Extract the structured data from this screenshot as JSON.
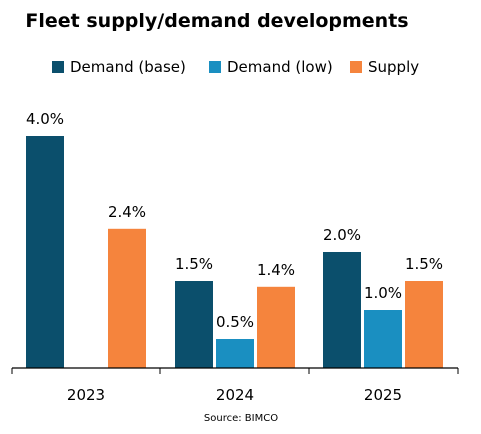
{
  "chart_data": {
    "type": "bar",
    "title": "Fleet supply/demand developments",
    "categories": [
      "2023",
      "2024",
      "2025"
    ],
    "series": [
      {
        "name": "Demand (base)",
        "values": [
          4.0,
          1.5,
          2.0
        ],
        "labels": [
          "4.0%",
          "1.5%",
          "2.0%"
        ],
        "color": "#0b4f6c"
      },
      {
        "name": "Demand (low)",
        "values": [
          null,
          0.5,
          1.0
        ],
        "labels": [
          "",
          "0.5%",
          "1.0%"
        ],
        "color": "#1a8fc1"
      },
      {
        "name": "Supply",
        "values": [
          2.4,
          1.4,
          1.5
        ],
        "labels": [
          "2.4%",
          "1.4%",
          "1.5%"
        ],
        "color": "#f5843d"
      }
    ],
    "unit": "%",
    "ylim": [
      0,
      4.0
    ],
    "grid": false,
    "legend_position": "top",
    "source": "Source: BIMCO"
  }
}
